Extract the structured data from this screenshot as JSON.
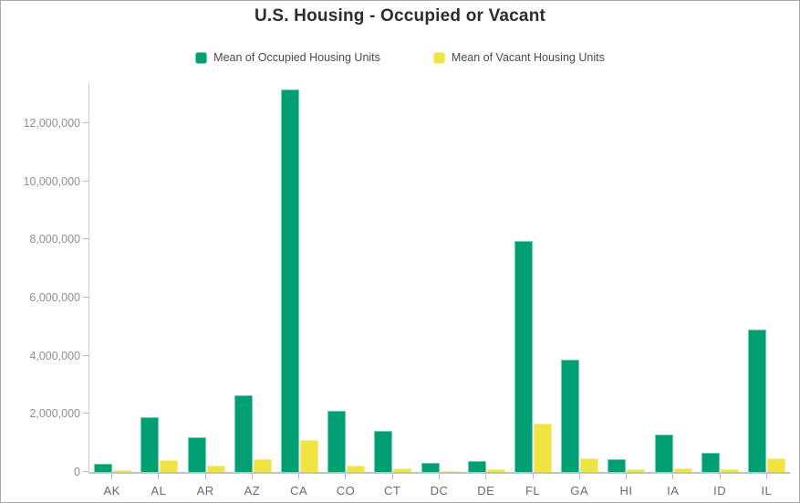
{
  "title": "U.S. Housing - Occupied or Vacant",
  "legend": [
    {
      "label": "Mean of Occupied Housing Units",
      "color": "#009E73"
    },
    {
      "label": "Mean of Vacant Housing Units",
      "color": "#F0E442"
    }
  ],
  "colors": {
    "occupied": "#009E73",
    "vacant": "#F0E442",
    "axis_line": "#cccccc",
    "tick": "#b8b8b8",
    "frame_border": "#a9a9a9"
  },
  "chart_data": {
    "type": "bar",
    "title": "U.S. Housing - Occupied or Vacant",
    "xlabel": "",
    "ylabel": "",
    "grid": false,
    "legend_position": "top-center",
    "categories": [
      "AK",
      "AL",
      "AR",
      "AZ",
      "CA",
      "CO",
      "CT",
      "DC",
      "DE",
      "FL",
      "GA",
      "HI",
      "IA",
      "ID",
      "IL"
    ],
    "series": [
      {
        "name": "Mean of Occupied Housing Units",
        "color": "#009E73",
        "values": [
          270000,
          1900000,
          1180000,
          2650000,
          13150000,
          2120000,
          1400000,
          300000,
          370000,
          7950000,
          3850000,
          450000,
          1290000,
          650000,
          4900000
        ]
      },
      {
        "name": "Mean of Vacant Housing Units",
        "color": "#F0E442",
        "values": [
          70000,
          400000,
          230000,
          430000,
          1100000,
          230000,
          140000,
          40000,
          80000,
          1650000,
          480000,
          90000,
          130000,
          90000,
          480000
        ]
      }
    ],
    "ylim": [
      0,
      13385000
    ],
    "yticks": [
      0,
      2000000,
      4000000,
      6000000,
      8000000,
      10000000,
      12000000
    ],
    "ytick_labels": [
      "0",
      "2,000,000",
      "4,000,000",
      "6,000,000",
      "8,000,000",
      "10,000,000",
      "12,000,000"
    ]
  }
}
